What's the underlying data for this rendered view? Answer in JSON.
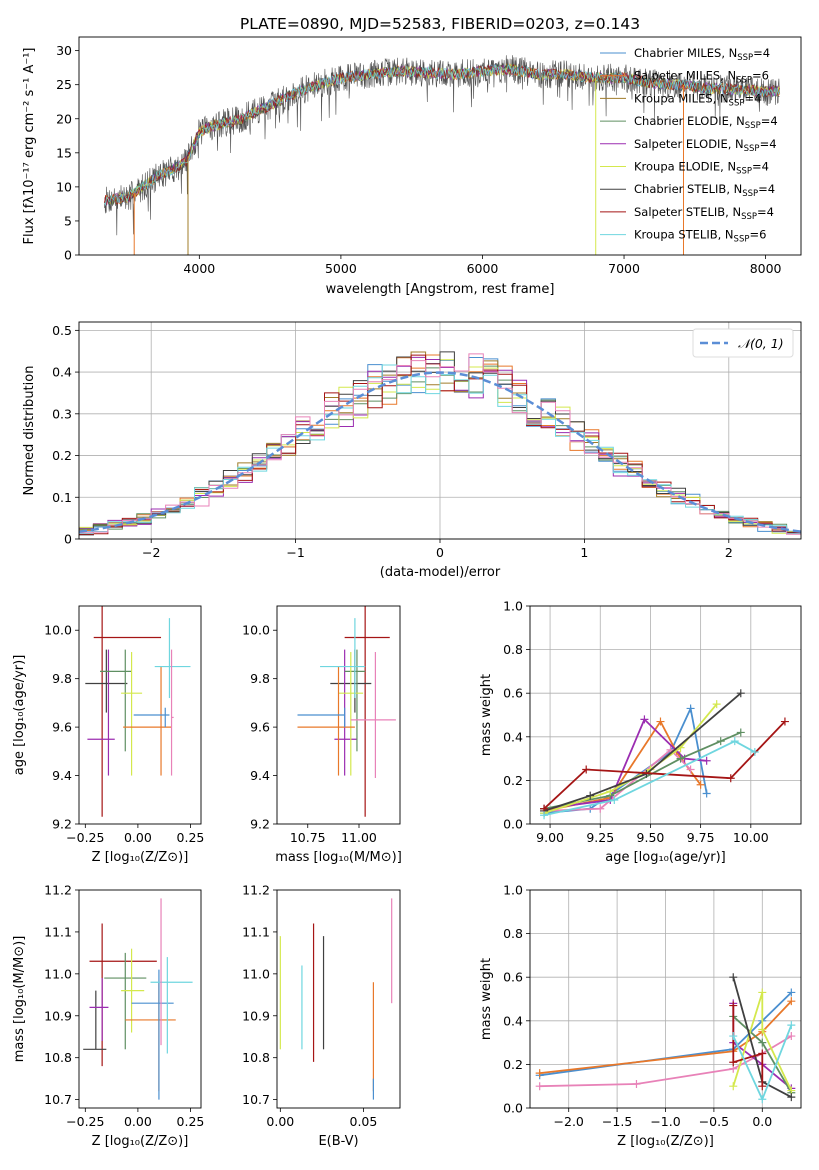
{
  "page": {
    "title": "PLATE=0890, MJD=52583, FIBERID=0203, z=0.143"
  },
  "chart_data": [
    {
      "id": "spectrum",
      "type": "line",
      "title": "PLATE=0890, MJD=52583, FIBERID=0203, z=0.143",
      "xlabel": "wavelength [Angstrom, rest frame]",
      "ylabel": "Flux [fλ10⁻¹⁷ erg cm⁻² s⁻¹ A⁻¹]",
      "xlim": [
        3150,
        8250
      ],
      "ylim": [
        0,
        32
      ],
      "xticks": [
        4000,
        5000,
        6000,
        7000,
        8000
      ],
      "yticks": [
        0,
        5,
        10,
        15,
        20,
        25,
        30
      ],
      "grid": false,
      "legend_position": "top-right",
      "continuum": {
        "x": [
          3330,
          3500,
          3700,
          3900,
          4000,
          4100,
          4300,
          4500,
          4700,
          4850,
          5000,
          5200,
          5400,
          5600,
          5800,
          6000,
          6200,
          6400,
          6600,
          6800,
          7000,
          7200,
          7400,
          7600,
          7800,
          8000,
          8100
        ],
        "y": [
          8,
          8.5,
          11.5,
          13.5,
          18,
          19,
          20,
          22,
          24,
          25,
          26,
          26.5,
          27,
          26.8,
          26.5,
          27,
          27.3,
          26.5,
          26.5,
          26,
          26,
          25.2,
          25,
          24.5,
          24.3,
          24,
          24
        ]
      },
      "series": [
        {
          "name": "Chabrier MILES, N_SSP=4",
          "color": "#4a8fcf"
        },
        {
          "name": "Salpeter MILES, N_SSP=6",
          "color": "#e8782a"
        },
        {
          "name": "Kroupa MILES, N_SSP=4",
          "color": "#a07c2a"
        },
        {
          "name": "Chabrier ELODIE, N_SSP=4",
          "color": "#5f8f62"
        },
        {
          "name": "Salpeter ELODIE, N_SSP=4",
          "color": "#9b2db1"
        },
        {
          "name": "Kroupa ELODIE, N_SSP=4",
          "color": "#d4e84d"
        },
        {
          "name": "Chabrier STELIB, N_SSP=4",
          "color": "#404040"
        },
        {
          "name": "Salpeter STELIB, N_SSP=4",
          "color": "#a51515"
        },
        {
          "name": "Kroupa STELIB, N_SSP=6",
          "color": "#6fd6df"
        }
      ],
      "legend_labels": [
        {
          "base": "Chabrier MILES, N",
          "sub": "SSP",
          "tail": "=4"
        },
        {
          "base": "Salpeter MILES, N",
          "sub": "SSP",
          "tail": "=6"
        },
        {
          "base": "Kroupa MILES, N",
          "sub": "SSP",
          "tail": "=4"
        },
        {
          "base": "Chabrier ELODIE, N",
          "sub": "SSP",
          "tail": "=4"
        },
        {
          "base": "Salpeter ELODIE, N",
          "sub": "SSP",
          "tail": "=4"
        },
        {
          "base": "Kroupa ELODIE, N",
          "sub": "SSP",
          "tail": "=4"
        },
        {
          "base": "Chabrier STELIB, N",
          "sub": "SSP",
          "tail": "=4"
        },
        {
          "base": "Salpeter STELIB, N",
          "sub": "SSP",
          "tail": "=4"
        },
        {
          "base": "Kroupa STELIB, N",
          "sub": "SSP",
          "tail": "=6"
        }
      ],
      "drops_to_zero": [
        {
          "x": 3540,
          "color": "#e8782a"
        },
        {
          "x": 3920,
          "color": "#a07c2a"
        },
        {
          "x": 6800,
          "color": "#d4e84d"
        },
        {
          "x": 7420,
          "color": "#e8782a"
        }
      ]
    },
    {
      "id": "residuals",
      "type": "histogram",
      "xlabel": "(data-model)/error",
      "ylabel": "Normed distribution",
      "xlim": [
        -2.5,
        2.5
      ],
      "ylim": [
        0,
        0.52
      ],
      "xticks": [
        -2,
        -1,
        0,
        1,
        2
      ],
      "yticks": [
        0.0,
        0.1,
        0.2,
        0.3,
        0.4,
        0.5
      ],
      "grid": true,
      "legend_position": "top-right",
      "legend_label": "𝒩(0, 1)",
      "reference_curve": {
        "mean": 0,
        "sigma": 1,
        "color": "#5b8ed6"
      },
      "bin_width": 0.1,
      "hist_colors": [
        "#4a8fcf",
        "#e8782a",
        "#a07c2a",
        "#5f8f62",
        "#9b2db1",
        "#d4e84d",
        "#404040",
        "#a51515",
        "#6fd6df",
        "#e882b8"
      ]
    },
    {
      "id": "age-vs-Z",
      "type": "errorbar",
      "xlabel": "Z [log₁₀(Z/Z⊙)]",
      "ylabel": "age  [log₁₀(age/yr)]",
      "xlim": [
        -0.28,
        0.3
      ],
      "ylim": [
        9.2,
        10.1
      ],
      "xticks": [
        -0.25,
        0.0,
        0.25
      ],
      "xtick_labels": [
        "−0.25",
        "0.00",
        "0.25"
      ],
      "yticks": [
        9.2,
        9.4,
        9.6,
        9.8,
        10.0
      ],
      "ytick_labels": [
        "9.2",
        "9.4",
        "9.6",
        "9.8",
        "10.0"
      ],
      "grid": false,
      "points": [
        {
          "x": -0.17,
          "y": 9.97,
          "xerr": 0.04,
          "xerr_hi": 0.28,
          "yerr_lo": 0.74,
          "yerr_hi": 0.13,
          "color": "#a51515"
        },
        {
          "x": -0.15,
          "y": 9.78,
          "xerr": 0.1,
          "xerr_hi": 0.1,
          "yerr_lo": 0.12,
          "yerr_hi": 0.14,
          "color": "#404040"
        },
        {
          "x": -0.14,
          "y": 9.55,
          "xerr": 0.1,
          "xerr_hi": 0.03,
          "yerr_lo": 0.15,
          "yerr_hi": 0.37,
          "color": "#9b2db1"
        },
        {
          "x": -0.06,
          "y": 9.83,
          "xerr": 0.12,
          "xerr_hi": 0.03,
          "yerr_lo": 0.33,
          "yerr_hi": 0.09,
          "color": "#5f8f62"
        },
        {
          "x": -0.03,
          "y": 9.74,
          "xerr": 0.05,
          "xerr_hi": 0.05,
          "yerr_lo": 0.34,
          "yerr_hi": 0.17,
          "color": "#d4e84d"
        },
        {
          "x": 0.11,
          "y": 9.6,
          "xerr": 0.18,
          "xerr_hi": 0.05,
          "yerr_lo": 0.2,
          "yerr_hi": 0.25,
          "color": "#e8782a"
        },
        {
          "x": 0.13,
          "y": 9.65,
          "xerr": 0.15,
          "xerr_hi": 0.02,
          "yerr_lo": 0.05,
          "yerr_hi": 0.03,
          "color": "#4a8fcf"
        },
        {
          "x": 0.15,
          "y": 9.85,
          "xerr": 0.07,
          "xerr_hi": 0.1,
          "yerr_lo": 0.13,
          "yerr_hi": 0.2,
          "color": "#6fd6df"
        },
        {
          "x": 0.16,
          "y": 9.64,
          "xerr": 0.0,
          "xerr_hi": 0.01,
          "yerr_lo": 0.24,
          "yerr_hi": 0.28,
          "color": "#e882b8"
        }
      ]
    },
    {
      "id": "age-vs-mass",
      "type": "errorbar",
      "xlabel": "mass [log₁₀(M/M⊙)]",
      "ylabel": "",
      "xlim": [
        10.6,
        11.2
      ],
      "ylim": [
        9.2,
        10.1
      ],
      "xticks": [
        10.75,
        11.0
      ],
      "xtick_labels": [
        "10.75",
        "11.00"
      ],
      "yticks": [
        9.2,
        9.4,
        9.6,
        9.8,
        10.0
      ],
      "ytick_labels": [
        "9.2",
        "9.4",
        "9.6",
        "9.8",
        "10.0"
      ],
      "grid": false,
      "points": [
        {
          "x": 11.03,
          "y": 9.97,
          "xerr": 0.1,
          "xerr_hi": 0.12,
          "yerr_lo": 0.74,
          "yerr_hi": 0.13,
          "color": "#a51515"
        },
        {
          "x": 10.98,
          "y": 9.78,
          "xerr": 0.12,
          "xerr_hi": 0.08,
          "yerr_lo": 0.12,
          "yerr_hi": 0.14,
          "color": "#404040"
        },
        {
          "x": 10.93,
          "y": 9.55,
          "xerr": 0.05,
          "xerr_hi": 0.06,
          "yerr_lo": 0.15,
          "yerr_hi": 0.37,
          "color": "#9b2db1"
        },
        {
          "x": 10.99,
          "y": 9.83,
          "xerr": 0.06,
          "xerr_hi": 0.04,
          "yerr_lo": 0.33,
          "yerr_hi": 0.09,
          "color": "#5f8f62"
        },
        {
          "x": 10.96,
          "y": 9.74,
          "xerr": 0.06,
          "xerr_hi": 0.06,
          "yerr_lo": 0.34,
          "yerr_hi": 0.17,
          "color": "#d4e84d"
        },
        {
          "x": 10.9,
          "y": 9.6,
          "xerr": 0.2,
          "xerr_hi": 0.08,
          "yerr_lo": 0.2,
          "yerr_hi": 0.25,
          "color": "#e8782a"
        },
        {
          "x": 10.93,
          "y": 9.65,
          "xerr": 0.23,
          "xerr_hi": 0.0,
          "yerr_lo": 0.05,
          "yerr_hi": 0.03,
          "color": "#4a8fcf"
        },
        {
          "x": 10.98,
          "y": 9.85,
          "xerr": 0.17,
          "xerr_hi": 0.05,
          "yerr_lo": 0.13,
          "yerr_hi": 0.2,
          "color": "#6fd6df"
        },
        {
          "x": 11.08,
          "y": 9.63,
          "xerr": 0.12,
          "xerr_hi": 0.1,
          "yerr_lo": 0.24,
          "yerr_hi": 0.28,
          "color": "#e882b8"
        }
      ]
    },
    {
      "id": "weight-vs-age",
      "type": "line",
      "xlabel": "age  [log₁₀(age/yr)]",
      "ylabel": "mass weight",
      "xlim": [
        8.9,
        10.25
      ],
      "ylim": [
        0.0,
        1.0
      ],
      "xticks": [
        9.0,
        9.25,
        9.5,
        9.75,
        10.0
      ],
      "xtick_labels": [
        "9.00",
        "9.25",
        "9.50",
        "9.75",
        "10.00"
      ],
      "yticks": [
        0.0,
        0.2,
        0.4,
        0.6,
        0.8,
        1.0
      ],
      "ytick_labels": [
        "0.0",
        "0.2",
        "0.4",
        "0.6",
        "0.8",
        "1.0"
      ],
      "grid": true,
      "series": [
        {
          "color": "#4a8fcf",
          "x": [
            8.97,
            9.2,
            9.6,
            9.7,
            9.78
          ],
          "y": [
            0.05,
            0.07,
            0.33,
            0.53,
            0.14
          ]
        },
        {
          "color": "#e8782a",
          "x": [
            8.97,
            9.3,
            9.55,
            9.63,
            9.75
          ],
          "y": [
            0.06,
            0.12,
            0.47,
            0.33,
            0.18
          ]
        },
        {
          "color": "#e882b8",
          "x": [
            8.97,
            9.25,
            9.6,
            9.7
          ],
          "y": [
            0.06,
            0.07,
            0.34,
            0.25
          ]
        },
        {
          "color": "#9b2db1",
          "x": [
            8.97,
            9.3,
            9.47,
            9.67,
            9.78
          ],
          "y": [
            0.07,
            0.11,
            0.48,
            0.3,
            0.29
          ]
        },
        {
          "color": "#5f8f62",
          "x": [
            8.97,
            9.3,
            9.65,
            9.85,
            9.95
          ],
          "y": [
            0.07,
            0.13,
            0.3,
            0.38,
            0.42
          ]
        },
        {
          "color": "#d4e84d",
          "x": [
            8.97,
            9.3,
            9.5,
            9.65,
            9.83
          ],
          "y": [
            0.05,
            0.15,
            0.25,
            0.35,
            0.55
          ]
        },
        {
          "color": "#404040",
          "x": [
            8.97,
            9.2,
            9.48,
            9.95
          ],
          "y": [
            0.06,
            0.13,
            0.23,
            0.6
          ]
        },
        {
          "color": "#a51515",
          "x": [
            8.97,
            9.18,
            9.9,
            10.17
          ],
          "y": [
            0.07,
            0.25,
            0.21,
            0.47
          ]
        },
        {
          "color": "#6fd6df",
          "x": [
            8.97,
            9.32,
            9.92,
            10.02
          ],
          "y": [
            0.04,
            0.11,
            0.38,
            0.33
          ]
        }
      ]
    },
    {
      "id": "mass-vs-Z",
      "type": "errorbar",
      "xlabel": "Z [log₁₀(Z/Z⊙)]",
      "ylabel": "mass [log₁₀(M/M⊙)]",
      "xlim": [
        -0.28,
        0.3
      ],
      "ylim": [
        10.68,
        11.2
      ],
      "xticks": [
        -0.25,
        0.0,
        0.25
      ],
      "xtick_labels": [
        "−0.25",
        "0.00",
        "0.25"
      ],
      "yticks": [
        10.7,
        10.8,
        10.9,
        11.0,
        11.1,
        11.2
      ],
      "ytick_labels": [
        "10.7",
        "10.8",
        "10.9",
        "11.0",
        "11.1",
        "11.2"
      ],
      "grid": false,
      "points": [
        {
          "x": -0.17,
          "y": 11.03,
          "xerr": 0.06,
          "xerr_hi": 0.26,
          "yerr_lo": 0.25,
          "yerr_hi": 0.09,
          "color": "#a51515"
        },
        {
          "x": -0.2,
          "y": 10.82,
          "xerr": 0.06,
          "xerr_hi": 0.05,
          "yerr_lo": 0.0,
          "yerr_hi": 0.14,
          "color": "#404040"
        },
        {
          "x": -0.17,
          "y": 10.92,
          "xerr": 0.06,
          "xerr_hi": 0.03,
          "yerr_lo": 0.08,
          "yerr_hi": 0.07,
          "color": "#9b2db1"
        },
        {
          "x": -0.06,
          "y": 10.99,
          "xerr": 0.1,
          "xerr_hi": 0.1,
          "yerr_lo": 0.17,
          "yerr_hi": 0.06,
          "color": "#5f8f62"
        },
        {
          "x": -0.03,
          "y": 10.96,
          "xerr": 0.05,
          "xerr_hi": 0.06,
          "yerr_lo": 0.1,
          "yerr_hi": 0.1,
          "color": "#d4e84d"
        },
        {
          "x": 0.1,
          "y": 10.89,
          "xerr": 0.16,
          "xerr_hi": 0.08,
          "yerr_lo": 0.17,
          "yerr_hi": 0.09,
          "color": "#e8782a"
        },
        {
          "x": 0.1,
          "y": 10.93,
          "xerr": 0.13,
          "xerr_hi": 0.07,
          "yerr_lo": 0.23,
          "yerr_hi": 0.08,
          "color": "#4a8fcf"
        },
        {
          "x": 0.14,
          "y": 10.98,
          "xerr": 0.08,
          "xerr_hi": 0.12,
          "yerr_lo": 0.17,
          "yerr_hi": 0.06,
          "color": "#6fd6df"
        },
        {
          "x": 0.11,
          "y": 11.03,
          "xerr": 0.0,
          "xerr_hi": 0.0,
          "yerr_lo": 0.2,
          "yerr_hi": 0.15,
          "color": "#e882b8"
        }
      ]
    },
    {
      "id": "mass-vs-EBV",
      "type": "errorbar",
      "xlabel": "E(B-V)",
      "ylabel": "",
      "xlim": [
        -0.002,
        0.072
      ],
      "ylim": [
        10.68,
        11.2
      ],
      "xticks": [
        0.0,
        0.05
      ],
      "xtick_labels": [
        "0.00",
        "0.05"
      ],
      "yticks": [
        10.7,
        10.8,
        10.9,
        11.0,
        11.1,
        11.2
      ],
      "ytick_labels": [
        "10.7",
        "10.8",
        "10.9",
        "11.0",
        "11.1",
        "11.2"
      ],
      "grid": false,
      "vertical_bars": [
        {
          "x": 0.0,
          "y_lo": 10.82,
          "y_hi": 11.09,
          "color": "#d4e84d"
        },
        {
          "x": 0.013,
          "y_lo": 10.82,
          "y_hi": 11.02,
          "color": "#6fd6df"
        },
        {
          "x": 0.02,
          "y_lo": 10.79,
          "y_hi": 11.12,
          "color": "#a51515"
        },
        {
          "x": 0.026,
          "y_lo": 10.82,
          "y_hi": 11.09,
          "color": "#404040"
        },
        {
          "x": 0.056,
          "y_lo": 10.72,
          "y_hi": 10.98,
          "color": "#e8782a"
        },
        {
          "x": 0.056,
          "y_lo": 10.7,
          "y_hi": 10.75,
          "color": "#4a8fcf"
        },
        {
          "x": 0.067,
          "y_lo": 10.93,
          "y_hi": 11.18,
          "color": "#e882b8"
        }
      ]
    },
    {
      "id": "weight-vs-Z",
      "type": "line",
      "xlabel": "Z [log₁₀(Z/Z⊙)]",
      "ylabel": "mass weight",
      "xlim": [
        -2.4,
        0.4
      ],
      "ylim": [
        0.0,
        1.0
      ],
      "xticks": [
        -2.0,
        -1.5,
        -1.0,
        -0.5,
        0.0
      ],
      "xtick_labels": [
        "−2.0",
        "−1.5",
        "−1.0",
        "−0.5",
        "0.0"
      ],
      "yticks": [
        0.0,
        0.2,
        0.4,
        0.6,
        0.8,
        1.0
      ],
      "ytick_labels": [
        "0.0",
        "0.2",
        "0.4",
        "0.6",
        "0.8",
        "1.0"
      ],
      "grid": true,
      "series": [
        {
          "color": "#4a8fcf",
          "x": [
            -2.3,
            -0.3,
            0.0,
            0.3
          ],
          "y": [
            0.15,
            0.27,
            0.4,
            0.53
          ]
        },
        {
          "color": "#e8782a",
          "x": [
            -2.3,
            -0.3,
            0.0,
            0.3
          ],
          "y": [
            0.16,
            0.26,
            0.35,
            0.49
          ]
        },
        {
          "color": "#e882b8",
          "x": [
            -2.3,
            -1.3,
            -0.3,
            0.0,
            0.3
          ],
          "y": [
            0.1,
            0.11,
            0.18,
            0.25,
            0.33
          ]
        },
        {
          "color": "#9b2db1",
          "x": [
            -0.3,
            -0.3,
            0.0,
            0.3
          ],
          "y": [
            0.48,
            0.3,
            0.2,
            0.09
          ]
        },
        {
          "color": "#5f8f62",
          "x": [
            -0.3,
            0.0,
            0.3
          ],
          "y": [
            0.42,
            0.3,
            0.07
          ]
        },
        {
          "color": "#d4e84d",
          "x": [
            -0.3,
            0.0,
            0.0,
            0.3
          ],
          "y": [
            0.1,
            0.53,
            0.36,
            0.08
          ]
        },
        {
          "color": "#404040",
          "x": [
            -0.3,
            0.0,
            0.3
          ],
          "y": [
            0.6,
            0.12,
            0.05
          ]
        },
        {
          "color": "#a51515",
          "x": [
            -0.3,
            -0.3,
            0.0,
            0.0
          ],
          "y": [
            0.47,
            0.21,
            0.25,
            0.1
          ]
        },
        {
          "color": "#6fd6df",
          "x": [
            -0.3,
            0.0,
            0.3
          ],
          "y": [
            0.33,
            0.04,
            0.38
          ]
        }
      ]
    }
  ]
}
